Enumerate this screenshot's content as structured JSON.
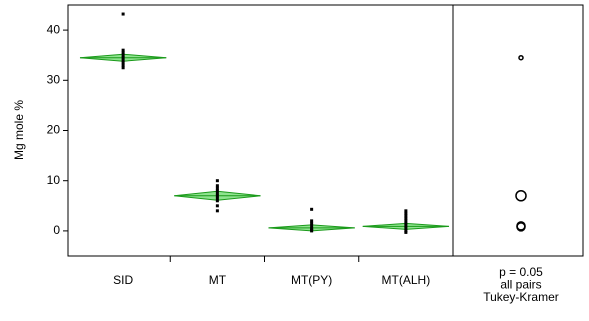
{
  "chart_data": {
    "type": "oneway",
    "y_label": "Mg mole %",
    "ylim": [
      -5,
      45
    ],
    "yticks": [
      0,
      10,
      20,
      30,
      40
    ],
    "diamond_color": "#33cc33",
    "groups": [
      {
        "name": "SID",
        "mean": 34.5,
        "ci": 0.7,
        "points": [
          43.2,
          36,
          35.5,
          35,
          34.5,
          34,
          33.5,
          33,
          32.5
        ]
      },
      {
        "name": "MT",
        "mean": 7,
        "ci": 0.9,
        "points": [
          10,
          9,
          8.5,
          8,
          7.5,
          7,
          6.5,
          6,
          5,
          4
        ]
      },
      {
        "name": "MT(PY)",
        "mean": 0.6,
        "ci": 0.6,
        "points": [
          4.3,
          2,
          1.5,
          1,
          0.5,
          0.2,
          0
        ]
      },
      {
        "name": "MT(ALH)",
        "mean": 0.9,
        "ci": 0.6,
        "points": [
          4,
          3.5,
          3,
          2.5,
          2,
          1.5,
          1,
          0.5,
          0,
          -0.3
        ]
      }
    ],
    "comparison_circles": [
      {
        "center": 34.5,
        "radius": 0.4
      },
      {
        "center": 7,
        "radius": 1
      },
      {
        "center": 1,
        "radius": 0.8
      },
      {
        "center": 0.8,
        "radius": 0.8
      }
    ],
    "comparison_text": [
      "p = 0.05",
      "all pairs",
      "Tukey-Kramer"
    ]
  }
}
